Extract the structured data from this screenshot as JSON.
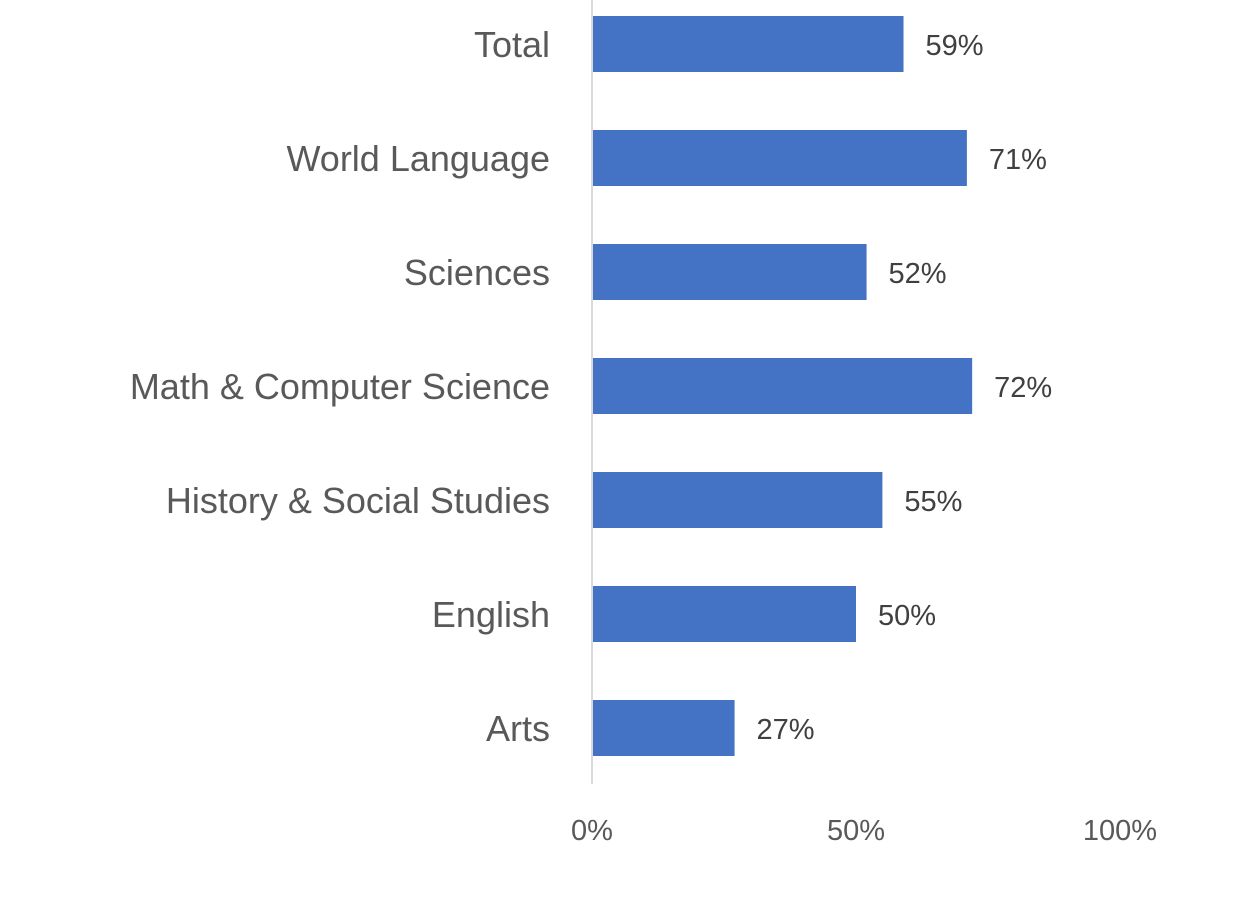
{
  "chart_data": {
    "type": "bar",
    "orientation": "horizontal",
    "title": "",
    "xlabel": "",
    "ylabel": "",
    "categories": [
      "Total",
      "World Language",
      "Sciences",
      "Math & Computer Science",
      "History & Social Studies",
      "English",
      "Arts"
    ],
    "values": [
      59,
      71,
      52,
      72,
      55,
      50,
      27
    ],
    "value_labels": [
      "59%",
      "71%",
      "52%",
      "72%",
      "55%",
      "50%",
      "27%"
    ],
    "xlim": [
      0,
      100
    ],
    "x_ticks": [
      0,
      50,
      100
    ],
    "x_tick_labels": [
      "0%",
      "50%",
      "100%"
    ],
    "grid": false,
    "legend": "none",
    "colors": {
      "bar": "#4472C4",
      "axis": "#D9D9D9"
    }
  }
}
